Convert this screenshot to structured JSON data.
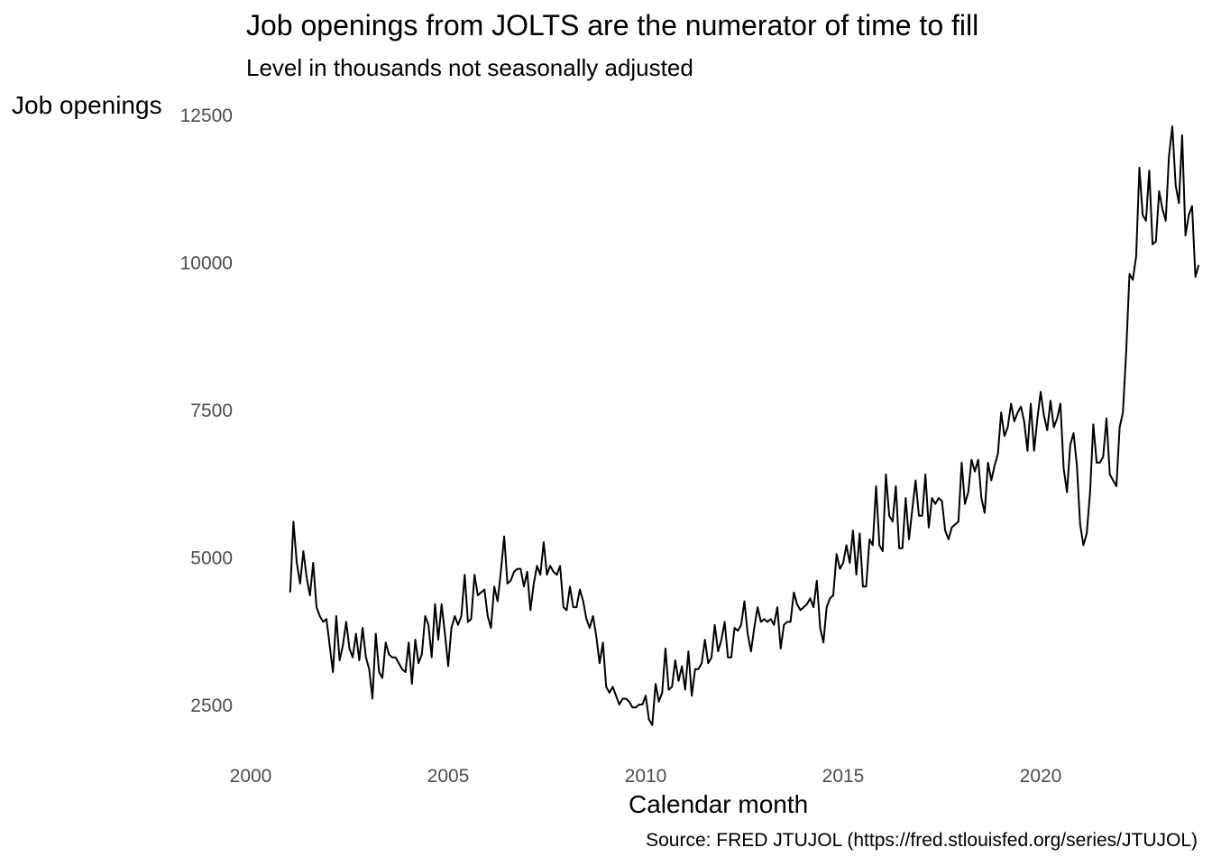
{
  "chart_data": {
    "type": "line",
    "title": "Job openings from JOLTS are the numerator of time to fill",
    "subtitle": "Level in thousands not seasonally adjusted",
    "xlabel": "Calendar month",
    "ylabel": "Job openings",
    "caption": "Source: FRED JTUJOL (https://fred.stlouisfed.org/series/JTUJOL)",
    "x_ticks": [
      "2000",
      "2005",
      "2010",
      "2015",
      "2020"
    ],
    "x_tick_values": [
      2000,
      2005,
      2010,
      2015,
      2020
    ],
    "y_ticks": [
      "2500",
      "5000",
      "7500",
      "10000",
      "12500"
    ],
    "y_tick_values": [
      2500,
      5000,
      7500,
      10000,
      12500
    ],
    "xlim": [
      2000,
      2023.2
    ],
    "ylim": [
      1800,
      12800
    ],
    "grid": false,
    "line_color": "#000000",
    "x_start": "2001-01",
    "frequency": "monthly",
    "values": [
      4400,
      5600,
      4900,
      4550,
      5100,
      4650,
      4350,
      4900,
      4150,
      4000,
      3900,
      3950,
      3500,
      3050,
      4000,
      3250,
      3500,
      3900,
      3450,
      3300,
      3700,
      3250,
      3800,
      3300,
      3100,
      2600,
      3700,
      3050,
      2950,
      3550,
      3350,
      3300,
      3300,
      3200,
      3100,
      3050,
      3550,
      2850,
      3600,
      3200,
      3350,
      4000,
      3850,
      3300,
      4200,
      3600,
      4200,
      3700,
      3150,
      3800,
      4000,
      3850,
      4000,
      4700,
      3900,
      3950,
      4700,
      4350,
      4400,
      4450,
      4000,
      3800,
      4500,
      4250,
      4750,
      5350,
      4550,
      4600,
      4750,
      4800,
      4800,
      4500,
      4750,
      4100,
      4550,
      4850,
      4700,
      5250,
      4700,
      4850,
      4750,
      4700,
      4850,
      4150,
      4100,
      4500,
      4150,
      4150,
      4450,
      4250,
      3950,
      3800,
      4000,
      3650,
      3200,
      3550,
      2800,
      2700,
      2800,
      2650,
      2500,
      2600,
      2600,
      2550,
      2450,
      2450,
      2500,
      2500,
      2650,
      2250,
      2150,
      2850,
      2550,
      2700,
      3450,
      2750,
      2800,
      3250,
      2900,
      3150,
      2750,
      3400,
      2650,
      3100,
      3100,
      3200,
      3600,
      3200,
      3300,
      3850,
      3400,
      3600,
      3900,
      3300,
      3300,
      3800,
      3750,
      3850,
      4250,
      3700,
      3400,
      3800,
      4150,
      3900,
      3950,
      3900,
      3950,
      3850,
      4150,
      3450,
      3850,
      3900,
      3900,
      4400,
      4200,
      4100,
      4150,
      4200,
      4300,
      4150,
      4600,
      3800,
      3550,
      4150,
      4300,
      4350,
      5050,
      4800,
      4900,
      5200,
      4900,
      5450,
      4700,
      5400,
      4500,
      4500,
      5300,
      5200,
      6200,
      5200,
      5100,
      6400,
      5700,
      5600,
      6200,
      5150,
      5150,
      6000,
      5300,
      5800,
      6300,
      5700,
      5700,
      6400,
      5500,
      6000,
      5900,
      6000,
      5950,
      5450,
      5300,
      5500,
      5550,
      5600,
      6600,
      5900,
      6100,
      6650,
      6450,
      6650,
      6000,
      5750,
      6600,
      6300,
      6550,
      6750,
      7450,
      7050,
      7200,
      7600,
      7300,
      7450,
      7550,
      7300,
      6800,
      7600,
      6800,
      7350,
      7800,
      7400,
      7150,
      7650,
      7200,
      7350,
      7600,
      6500,
      6100,
      6900,
      7100,
      6550,
      5550,
      5200,
      5400,
      6100,
      7250,
      6600,
      6600,
      6700,
      7350,
      6400,
      6300,
      6200,
      7200,
      7450,
      8500,
      9800,
      9700,
      10100,
      11600,
      10800,
      10700,
      11550,
      10300,
      10350,
      11200,
      10900,
      10700,
      11800,
      12300,
      11300,
      11000,
      12150,
      10450,
      10800,
      10950,
      9750,
      9950
    ]
  }
}
